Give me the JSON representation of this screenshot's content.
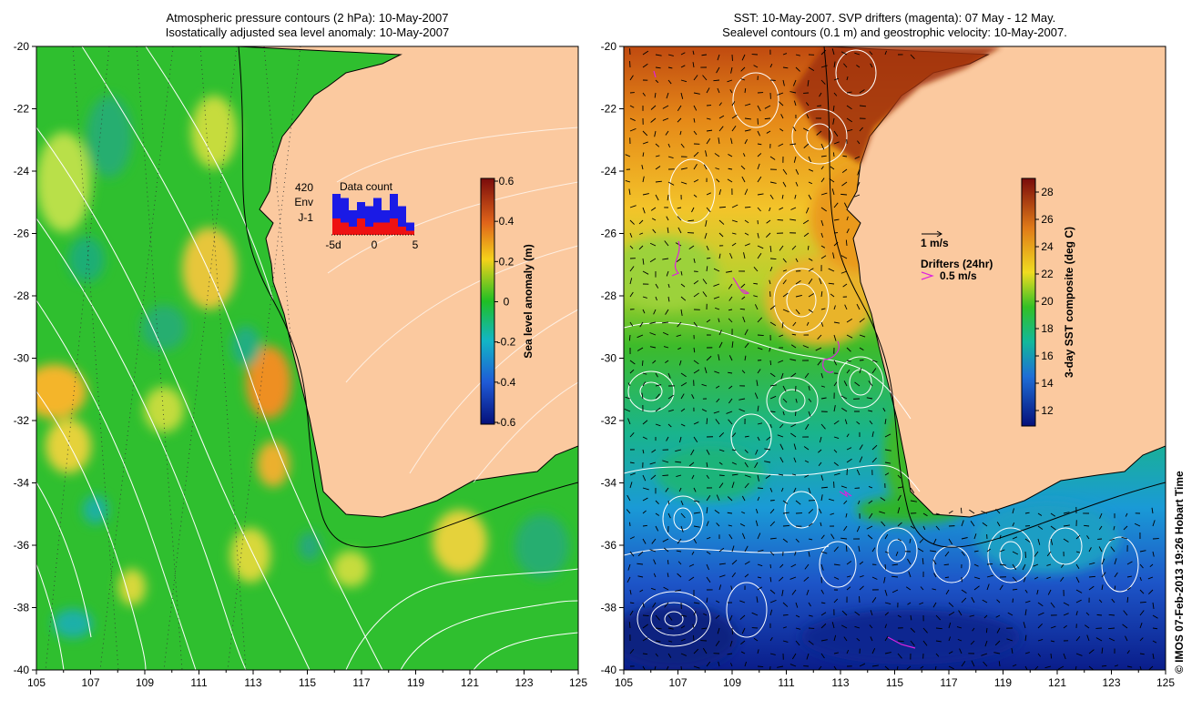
{
  "left_panel": {
    "title_line1": "Atmospheric pressure contours (2 hPa): 10-May-2007",
    "title_line2": "Isostatically adjusted sea level anomaly: 10-May-2007",
    "x_ticks": [
      "105",
      "107",
      "109",
      "111",
      "113",
      "115",
      "117",
      "119",
      "121",
      "123",
      "125"
    ],
    "y_ticks": [
      "-20",
      "-22",
      "-24",
      "-26",
      "-28",
      "-30",
      "-32",
      "-34",
      "-36",
      "-38",
      "-40"
    ],
    "colorbar_label": "Sea level anomaly (m)",
    "colorbar_ticks": [
      "0.6",
      "0.4",
      "0.2",
      "0",
      "-0.2",
      "-0.4",
      "-0.6"
    ],
    "data_count": {
      "count_value": "420",
      "env_label": "Env",
      "j1_label": "J-1",
      "title": "Data count",
      "x_tick_labels": [
        "-5d",
        "0",
        "5"
      ],
      "bars_total": [
        10,
        9,
        6,
        8,
        7,
        9,
        6,
        10,
        7,
        3
      ],
      "bars_j1": [
        4,
        3,
        2,
        4,
        2,
        3,
        3,
        4,
        2,
        1
      ],
      "env_color": "#1a1ae6",
      "j1_color": "#ee1111"
    }
  },
  "right_panel": {
    "title_line1": "SST: 10-May-2007. SVP drifters (magenta): 07 May - 12 May.",
    "title_line2": "Sealevel contours (0.1 m) and geostrophic velocity: 10-May-2007.",
    "x_ticks": [
      "105",
      "107",
      "109",
      "111",
      "113",
      "115",
      "117",
      "119",
      "121",
      "123",
      "125"
    ],
    "y_ticks": [
      "-20",
      "-22",
      "-24",
      "-26",
      "-28",
      "-30",
      "-32",
      "-34",
      "-36",
      "-38",
      "-40"
    ],
    "colorbar_label": "3-day SST composite (deg C)",
    "colorbar_ticks": [
      "28",
      "26",
      "24",
      "22",
      "20",
      "18",
      "16",
      "14",
      "12"
    ],
    "velocity_scale_label": "1 m/s",
    "drifters_title": "Drifters (24hr)",
    "drifters_speed": "0.5 m/s",
    "drifter_color": "#dd22dd"
  },
  "credit": "© IMOS 07-Feb-2013 19:26 Hobart Time",
  "colors": {
    "land": "#fbc99f",
    "ocean_green": "#2fbf2f",
    "coastline": "#000000",
    "contour": "#ffffff"
  }
}
